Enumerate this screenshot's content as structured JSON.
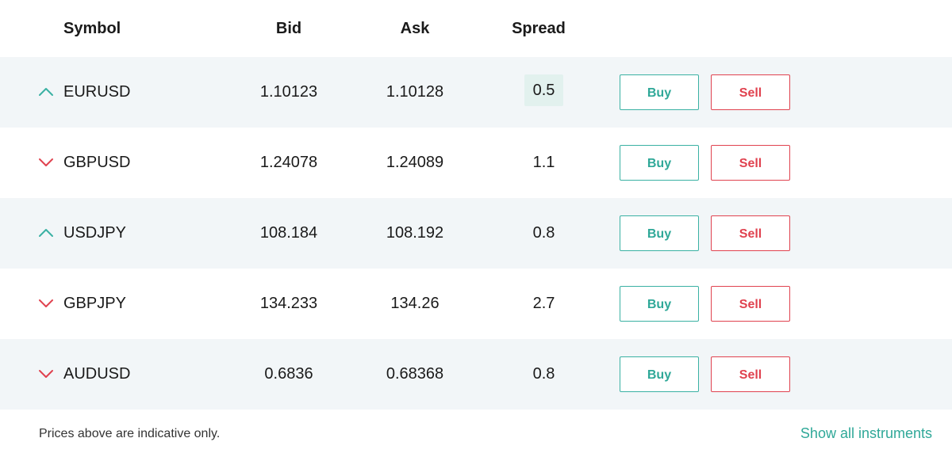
{
  "columns": {
    "symbol": "Symbol",
    "bid": "Bid",
    "ask": "Ask",
    "spread": "Spread"
  },
  "colors": {
    "up": "#3ab1a3",
    "down": "#e0424f",
    "row_alt": "#f2f6f8",
    "spread_highlight": "#e2f1ee"
  },
  "rows": [
    {
      "direction": "up",
      "direction_icon": "chevron-up-icon",
      "symbol": "EURUSD",
      "bid": "1.10123",
      "ask": "1.10128",
      "spread": "0.5",
      "spread_highlighted": true,
      "buy_label": "Buy",
      "sell_label": "Sell"
    },
    {
      "direction": "down",
      "direction_icon": "chevron-down-icon",
      "symbol": "GBPUSD",
      "bid": "1.24078",
      "ask": "1.24089",
      "spread": "1.1",
      "spread_highlighted": false,
      "buy_label": "Buy",
      "sell_label": "Sell"
    },
    {
      "direction": "up",
      "direction_icon": "chevron-up-icon",
      "symbol": "USDJPY",
      "bid": "108.184",
      "ask": "108.192",
      "spread": "0.8",
      "spread_highlighted": false,
      "buy_label": "Buy",
      "sell_label": "Sell"
    },
    {
      "direction": "down",
      "direction_icon": "chevron-down-icon",
      "symbol": "GBPJPY",
      "bid": "134.233",
      "ask": "134.26",
      "spread": "2.7",
      "spread_highlighted": false,
      "buy_label": "Buy",
      "sell_label": "Sell"
    },
    {
      "direction": "down",
      "direction_icon": "chevron-down-icon",
      "symbol": "AUDUSD",
      "bid": "0.6836",
      "ask": "0.68368",
      "spread": "0.8",
      "spread_highlighted": false,
      "buy_label": "Buy",
      "sell_label": "Sell"
    }
  ],
  "footer": {
    "note": "Prices above are indicative only.",
    "show_all_label": "Show all instruments"
  }
}
